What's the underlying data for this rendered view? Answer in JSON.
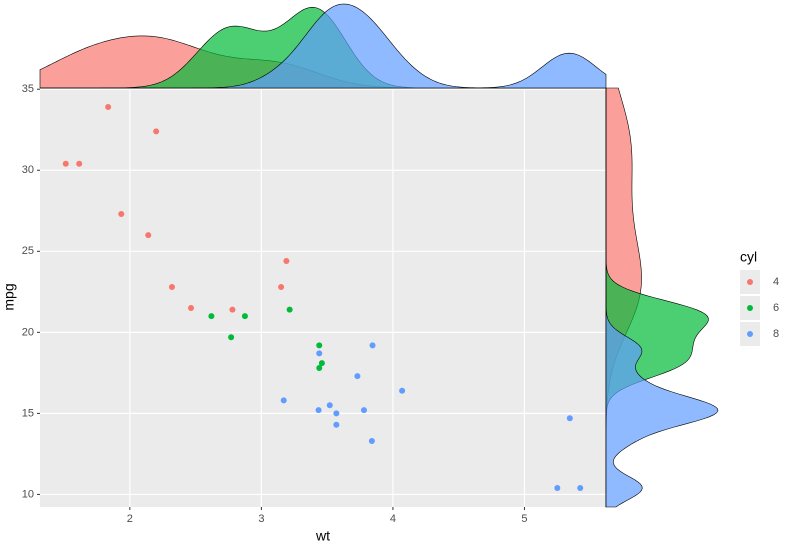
{
  "chart_data": {
    "type": "scatter",
    "x_label": "wt",
    "y_label": "mpg",
    "legend_title": "cyl",
    "xlim": [
      1.317,
      5.62
    ],
    "ylim": [
      9.225,
      35.075
    ],
    "xticks": [
      2,
      3,
      4,
      5
    ],
    "yticks": [
      10,
      15,
      20,
      25,
      30,
      35
    ],
    "grid": true,
    "marginal_density": true,
    "legend": "right",
    "series": [
      {
        "name": "4",
        "color": "#F8766D",
        "x": [
          2.32,
          3.19,
          3.15,
          2.2,
          1.615,
          1.835,
          2.465,
          1.935,
          2.14,
          1.513,
          2.78
        ],
        "values": [
          22.8,
          24.4,
          22.8,
          32.4,
          30.4,
          33.9,
          21.5,
          27.3,
          26.0,
          30.4,
          21.4
        ]
      },
      {
        "name": "6",
        "color": "#00BA38",
        "x": [
          2.62,
          2.875,
          3.215,
          3.46,
          3.44,
          3.44,
          2.77
        ],
        "values": [
          21.0,
          21.0,
          21.4,
          18.1,
          19.2,
          17.8,
          19.7
        ]
      },
      {
        "name": "8",
        "color": "#619CFF",
        "x": [
          3.44,
          3.57,
          4.07,
          3.73,
          3.78,
          5.25,
          5.424,
          5.345,
          3.52,
          3.435,
          3.84,
          3.845,
          3.17,
          3.57
        ],
        "values": [
          18.7,
          14.3,
          16.4,
          17.3,
          15.2,
          10.4,
          10.4,
          14.7,
          15.5,
          15.2,
          13.3,
          19.2,
          15.8,
          15.0
        ]
      }
    ]
  }
}
